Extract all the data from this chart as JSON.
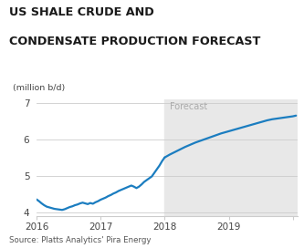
{
  "title_line1": "US SHALE CRUDE AND",
  "title_line2": "CONDENSATE PRODUCTION FORECAST",
  "ylabel": "(million b/d)",
  "forecast_label": "Forecast",
  "source": "Source: Platts Analytics' Pira Energy",
  "ylim": [
    3.9,
    7.1
  ],
  "yticks": [
    4,
    5,
    6,
    7
  ],
  "line_color": "#1b7dc0",
  "forecast_bg": "#e8e8e8",
  "title_color": "#1a1a1a",
  "axis_color": "#444444",
  "source_color": "#555555",
  "grid_color": "#cccccc",
  "historical_x": [
    0.0,
    0.04,
    0.08,
    0.12,
    0.16,
    0.2,
    0.24,
    0.28,
    0.32,
    0.36,
    0.4,
    0.44,
    0.48,
    0.52,
    0.56,
    0.6,
    0.64,
    0.68,
    0.72,
    0.76,
    0.8,
    0.84,
    0.88,
    0.92,
    0.96,
    1.0,
    1.04,
    1.08,
    1.12,
    1.16,
    1.2,
    1.24,
    1.28,
    1.32,
    1.36,
    1.4,
    1.44,
    1.48,
    1.52,
    1.56,
    1.6,
    1.64,
    1.68,
    1.72,
    1.76,
    1.8,
    1.84,
    1.88,
    1.92,
    1.96,
    2.0
  ],
  "historical_y": [
    4.35,
    4.3,
    4.24,
    4.19,
    4.15,
    4.13,
    4.11,
    4.09,
    4.08,
    4.07,
    4.06,
    4.08,
    4.11,
    4.14,
    4.16,
    4.19,
    4.21,
    4.24,
    4.26,
    4.24,
    4.22,
    4.25,
    4.23,
    4.27,
    4.3,
    4.34,
    4.37,
    4.4,
    4.44,
    4.47,
    4.51,
    4.54,
    4.58,
    4.61,
    4.64,
    4.67,
    4.7,
    4.73,
    4.7,
    4.66,
    4.7,
    4.76,
    4.83,
    4.88,
    4.93,
    4.98,
    5.08,
    5.18,
    5.28,
    5.4,
    5.5
  ],
  "forecast_x": [
    2.0,
    2.08,
    2.16,
    2.24,
    2.32,
    2.4,
    2.48,
    2.56,
    2.64,
    2.72,
    2.8,
    2.88,
    2.96,
    3.04,
    3.12,
    3.2,
    3.28,
    3.36,
    3.44,
    3.52,
    3.6,
    3.68,
    3.76,
    3.84,
    3.92,
    4.0,
    4.05
  ],
  "forecast_y": [
    5.5,
    5.58,
    5.65,
    5.72,
    5.79,
    5.85,
    5.91,
    5.96,
    6.01,
    6.06,
    6.11,
    6.16,
    6.2,
    6.24,
    6.28,
    6.32,
    6.36,
    6.4,
    6.44,
    6.48,
    6.52,
    6.55,
    6.57,
    6.59,
    6.61,
    6.63,
    6.65
  ],
  "xticks": [
    0.0,
    1.0,
    2.0,
    3.0,
    4.0
  ],
  "xticklabels": [
    "2016",
    "2017",
    "2018",
    "2019",
    ""
  ],
  "xlim": [
    0.0,
    4.08
  ]
}
